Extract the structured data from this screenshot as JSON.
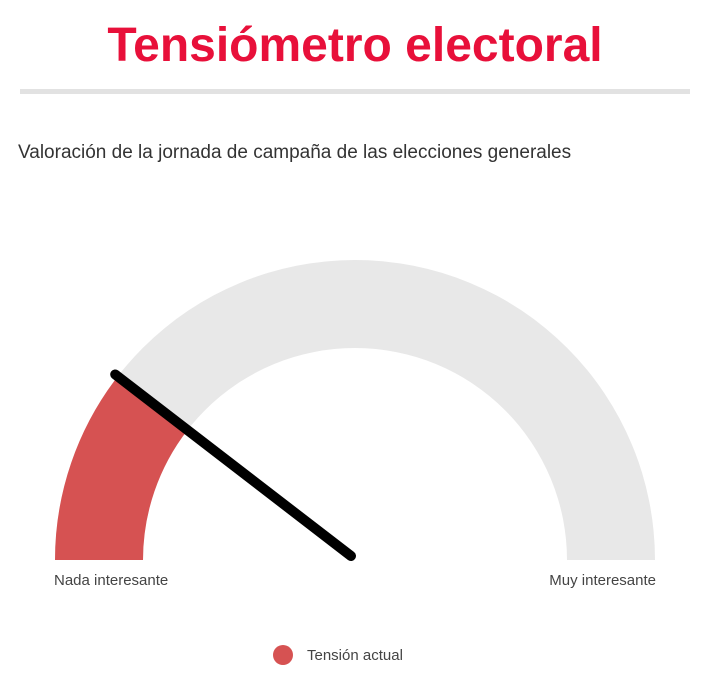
{
  "title": "Tensiómetro electoral",
  "subtitle": "Valoración de la jornada de campaña de las elecciones generales",
  "colors": {
    "title": "#e8103a",
    "divider": "#e2e2e2",
    "track": "#e8e8e8",
    "value": "#d65252",
    "needle": "#000000",
    "label": "#444444"
  },
  "chart_data": {
    "type": "gauge",
    "min_label": "Nada interesante",
    "max_label": "Muy interesante",
    "value_fraction": 0.21,
    "series": [
      {
        "name": "Tensión actual",
        "value_fraction": 0.21
      }
    ],
    "legend_placement": "bottom-center"
  }
}
